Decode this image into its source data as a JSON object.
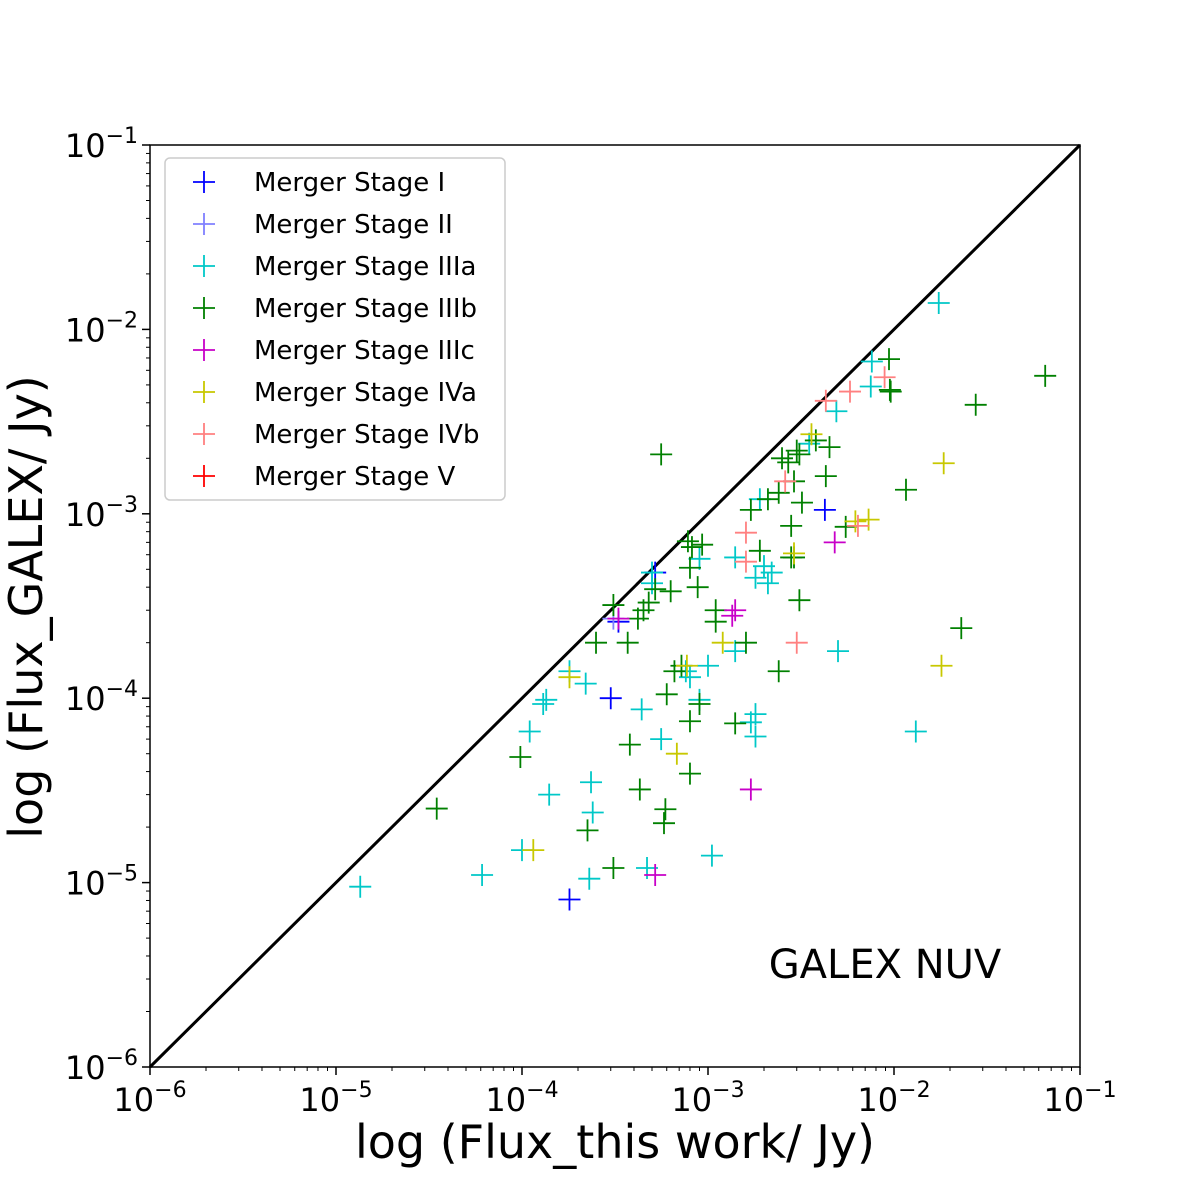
{
  "chart_data": {
    "type": "scatter",
    "title": "",
    "xlabel": "log (Flux_this work/ Jy)",
    "ylabel": "log (Flux_GALEX/ Jy)",
    "xscale": "log",
    "yscale": "log",
    "xlim": [
      1e-06,
      0.1
    ],
    "ylim": [
      1e-06,
      0.1
    ],
    "grid": false,
    "legend_position": "top-left",
    "annotation": "GALEX NUV",
    "reference_line": {
      "x": [
        1e-06,
        0.1
      ],
      "y": [
        1e-06,
        0.1
      ],
      "color": "#000000"
    },
    "series": [
      {
        "name": "Merger Stage I",
        "color": "#0000ff",
        "points": [
          [
            0.00425,
            0.00105
          ],
          [
            0.0003,
            0.0001
          ],
          [
            0.00018,
            8.1e-06
          ],
          [
            0.00033,
            0.00026
          ],
          [
            0.00052,
            0.00048
          ]
        ]
      },
      {
        "name": "Merger Stage II",
        "color": "#8080ff",
        "points": [
          [
            0.00031,
            0.00027
          ]
        ]
      },
      {
        "name": "Merger Stage IIIa",
        "color": "#00c8c8",
        "points": [
          [
            0.0174,
            0.0139
          ],
          [
            0.0076,
            0.0067
          ],
          [
            0.0075,
            0.0049
          ],
          [
            0.0049,
            0.0036
          ],
          [
            0.0035,
            0.0024
          ],
          [
            0.0019,
            0.0012
          ],
          [
            0.002,
            0.00052
          ],
          [
            0.0021,
            0.00042
          ],
          [
            0.0022,
            0.00048
          ],
          [
            0.0014,
            0.00058
          ],
          [
            0.0018,
            0.00045
          ],
          [
            0.0009,
            0.00057
          ],
          [
            0.0005,
            0.00042
          ],
          [
            0.0018,
            8.2e-05
          ],
          [
            0.0017,
            7.4e-05
          ],
          [
            0.0018,
            6.2e-05
          ],
          [
            0.0014,
            0.00018
          ],
          [
            0.001,
            0.00015
          ],
          [
            0.0009,
            9.8e-05
          ],
          [
            0.0008,
            0.00013
          ],
          [
            0.00076,
            0.00014
          ],
          [
            0.0005,
            0.00048
          ],
          [
            0.00044,
            8.7e-05
          ],
          [
            0.00056,
            6e-05
          ],
          [
            0.000135,
            9.8e-05
          ],
          [
            0.00013,
            9.3e-05
          ],
          [
            0.00011,
            6.6e-05
          ],
          [
            0.00022,
            0.00012
          ],
          [
            0.00018,
            0.00014
          ],
          [
            0.000235,
            3.5e-05
          ],
          [
            0.00014,
            3e-05
          ],
          [
            0.00024,
            2.4e-05
          ],
          [
            0.0001,
            1.5e-05
          ],
          [
            6.1e-05,
            1.1e-05
          ],
          [
            1.35e-05,
            9.5e-06
          ],
          [
            0.00023,
            1.05e-05
          ],
          [
            0.00047,
            1.2e-05
          ],
          [
            0.00105,
            1.4e-05
          ],
          [
            0.005,
            0.00018
          ],
          [
            0.0131,
            6.6e-05
          ]
        ]
      },
      {
        "name": "Merger Stage IIIb",
        "color": "#008000",
        "points": [
          [
            0.065,
            0.0056
          ],
          [
            0.0275,
            0.0039
          ],
          [
            0.0096,
            0.0046
          ],
          [
            0.0094,
            0.0069
          ],
          [
            0.0116,
            0.00135
          ],
          [
            0.0055,
            0.00085
          ],
          [
            0.0045,
            0.0023
          ],
          [
            0.0043,
            0.0016
          ],
          [
            0.0038,
            0.0025
          ],
          [
            0.0031,
            0.0021
          ],
          [
            0.003,
            0.0022
          ],
          [
            0.0029,
            0.0015
          ],
          [
            0.0027,
            0.0019
          ],
          [
            0.0028,
            0.00086
          ],
          [
            0.0025,
            0.002
          ],
          [
            0.0024,
            0.0013
          ],
          [
            0.0021,
            0.0012
          ],
          [
            0.0019,
            0.00063
          ],
          [
            0.0029,
            0.00058
          ],
          [
            0.0031,
            0.00034
          ],
          [
            0.0032,
            0.00115
          ],
          [
            0.0028,
            0.00058
          ],
          [
            0.0017,
            0.00105
          ],
          [
            0.0016,
            0.0002
          ],
          [
            0.0024,
            0.00014
          ],
          [
            0.0014,
            7.3e-05
          ],
          [
            0.0011,
            0.0003
          ],
          [
            0.0011,
            0.00026
          ],
          [
            0.00093,
            0.00068
          ],
          [
            0.00082,
            0.00066
          ],
          [
            0.00078,
            0.00071
          ],
          [
            0.0008,
            0.00051
          ],
          [
            0.00088,
            0.0004
          ],
          [
            0.00072,
            0.00015
          ],
          [
            0.00063,
            0.00038
          ],
          [
            0.00056,
            0.0021
          ],
          [
            0.00052,
            0.00039
          ],
          [
            0.00048,
            0.00033
          ],
          [
            0.00045,
            0.0003
          ],
          [
            0.00042,
            0.00027
          ],
          [
            0.00037,
            0.0002
          ],
          [
            0.00031,
            0.00032
          ],
          [
            0.00025,
            0.0002
          ],
          [
            0.0006,
            0.000105
          ],
          [
            0.00066,
            0.00014
          ],
          [
            0.0008,
            7.5e-05
          ],
          [
            0.0009,
            9.3e-05
          ],
          [
            0.00038,
            5.6e-05
          ],
          [
            0.00043,
            3.2e-05
          ],
          [
            0.00059,
            2.5e-05
          ],
          [
            0.00058,
            2.1e-05
          ],
          [
            0.0008,
            3.9e-05
          ],
          [
            3.48e-05,
            2.52e-05
          ],
          [
            9.8e-05,
            4.8e-05
          ],
          [
            0.000225,
            1.92e-05
          ],
          [
            0.00031,
            1.2e-05
          ],
          [
            0.023,
            0.00024
          ],
          [
            0.0095,
            0.0047
          ]
        ]
      },
      {
        "name": "Merger Stage IIIc",
        "color": "#c800c8",
        "points": [
          [
            0.0048,
            0.0007
          ],
          [
            0.0014,
            0.0003
          ],
          [
            0.00135,
            0.00028
          ],
          [
            0.00033,
            0.00027
          ],
          [
            0.0017,
            3.2e-05
          ],
          [
            0.00052,
            1.1e-05
          ]
        ]
      },
      {
        "name": "Merger Stage IVa",
        "color": "#c8c800",
        "points": [
          [
            0.0185,
            0.00188
          ],
          [
            0.018,
            0.00015
          ],
          [
            0.0073,
            0.00093
          ],
          [
            0.0062,
            0.00091
          ],
          [
            0.0036,
            0.0027
          ],
          [
            0.0029,
            0.00061
          ],
          [
            0.0012,
            0.0002
          ],
          [
            0.00077,
            0.00015
          ],
          [
            0.00068,
            5e-05
          ],
          [
            0.00018,
            0.00013
          ],
          [
            0.000115,
            1.5e-05
          ]
        ]
      },
      {
        "name": "Merger Stage IVb",
        "color": "#ff8080",
        "points": [
          [
            0.0089,
            0.0055
          ],
          [
            0.0058,
            0.0046
          ],
          [
            0.0043,
            0.0041
          ],
          [
            0.0064,
            0.00086
          ],
          [
            0.0026,
            0.0015
          ],
          [
            0.0016,
            0.00079
          ],
          [
            0.0016,
            0.00055
          ],
          [
            0.003,
            0.0002
          ]
        ]
      },
      {
        "name": "Merger Stage V",
        "color": "#ff0000",
        "points": []
      }
    ]
  },
  "ticks": {
    "x": [
      {
        "value": 1e-06,
        "base": "10",
        "exp": "−6"
      },
      {
        "value": 1e-05,
        "base": "10",
        "exp": "−5"
      },
      {
        "value": 0.0001,
        "base": "10",
        "exp": "−4"
      },
      {
        "value": 0.001,
        "base": "10",
        "exp": "−3"
      },
      {
        "value": 0.01,
        "base": "10",
        "exp": "−2"
      },
      {
        "value": 0.1,
        "base": "10",
        "exp": "−1"
      }
    ],
    "y": [
      {
        "value": 1e-06,
        "base": "10",
        "exp": "−6"
      },
      {
        "value": 1e-05,
        "base": "10",
        "exp": "−5"
      },
      {
        "value": 0.0001,
        "base": "10",
        "exp": "−4"
      },
      {
        "value": 0.001,
        "base": "10",
        "exp": "−3"
      },
      {
        "value": 0.01,
        "base": "10",
        "exp": "−2"
      },
      {
        "value": 0.1,
        "base": "10",
        "exp": "−1"
      }
    ]
  }
}
